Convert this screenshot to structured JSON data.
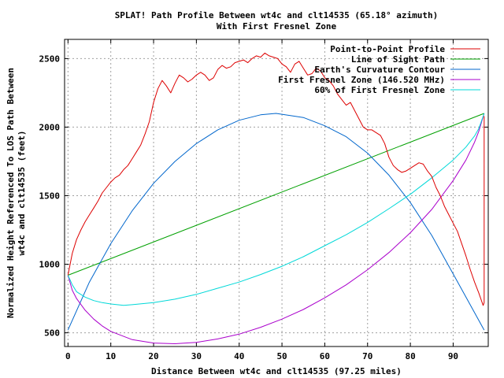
{
  "chart_data": {
    "type": "line",
    "title": "SPLAT! Path Profile Between wt4c and clt14535 (65.18° azimuth)",
    "subtitle": "With First Fresnel Zone",
    "xlabel": "Distance Between wt4c and clt14535 (97.25 miles)",
    "ylabel_line1": "Normalized Height Referenced To LOS Path Between",
    "ylabel_line2": "wt4c and clt14535 (feet)",
    "xlim": [
      -0.8,
      98.2
    ],
    "ylim": [
      400,
      2640
    ],
    "x_ticks": [
      0,
      10,
      20,
      30,
      40,
      50,
      60,
      70,
      80,
      90
    ],
    "y_ticks": [
      500,
      1000,
      1500,
      2000,
      2500
    ],
    "grid": true,
    "legend_position": "top-right",
    "series": [
      {
        "name": "Point-to-Point Profile",
        "color": "#dd0000",
        "x": [
          0,
          1,
          2,
          3,
          4,
          5,
          6,
          7,
          8,
          9,
          10,
          11,
          12,
          13,
          14,
          15,
          16,
          17,
          18,
          19,
          20,
          21,
          22,
          23,
          24,
          25,
          26,
          27,
          28,
          29,
          30,
          31,
          32,
          33,
          34,
          35,
          36,
          37,
          38,
          39,
          40,
          41,
          42,
          43,
          44,
          45,
          46,
          47,
          48,
          49,
          50,
          51,
          52,
          53,
          54,
          55,
          56,
          57,
          58,
          59,
          60,
          61,
          62,
          63,
          64,
          65,
          66,
          67,
          68,
          69,
          70,
          71,
          72,
          73,
          74,
          75,
          76,
          77,
          78,
          79,
          80,
          81,
          82,
          83,
          84,
          85,
          86,
          87,
          88,
          89,
          90,
          91,
          92,
          93,
          94,
          95,
          96,
          97,
          97.25,
          97.25
        ],
        "y": [
          920,
          1080,
          1180,
          1250,
          1310,
          1360,
          1410,
          1460,
          1520,
          1560,
          1600,
          1630,
          1650,
          1690,
          1720,
          1770,
          1820,
          1870,
          1950,
          2040,
          2180,
          2280,
          2340,
          2300,
          2250,
          2320,
          2380,
          2360,
          2330,
          2350,
          2380,
          2400,
          2380,
          2340,
          2360,
          2420,
          2450,
          2430,
          2440,
          2470,
          2480,
          2490,
          2470,
          2500,
          2520,
          2510,
          2540,
          2520,
          2510,
          2500,
          2460,
          2440,
          2400,
          2460,
          2480,
          2430,
          2380,
          2390,
          2430,
          2410,
          2360,
          2340,
          2300,
          2240,
          2200,
          2160,
          2180,
          2120,
          2060,
          2000,
          1980,
          1980,
          1960,
          1940,
          1880,
          1780,
          1720,
          1690,
          1670,
          1680,
          1700,
          1720,
          1740,
          1730,
          1680,
          1640,
          1560,
          1500,
          1420,
          1360,
          1300,
          1240,
          1150,
          1060,
          960,
          870,
          790,
          700,
          720,
          2080
        ]
      },
      {
        "name": "Line of Sight Path",
        "color": "#00a000",
        "x": [
          0,
          97.25
        ],
        "y": [
          920,
          2100
        ]
      },
      {
        "name": "Earth's Curvature Contour",
        "color": "#0066cc",
        "x": [
          0,
          5,
          10,
          15,
          20,
          25,
          30,
          35,
          40,
          45,
          48.6,
          55,
          60,
          65,
          70,
          75,
          80,
          85,
          90,
          97.25
        ],
        "y": [
          520,
          870,
          1150,
          1390,
          1590,
          1750,
          1880,
          1980,
          2050,
          2090,
          2100,
          2070,
          2010,
          1930,
          1810,
          1650,
          1450,
          1210,
          930,
          520
        ]
      },
      {
        "name": "First Fresnel Zone (146.520 MHz)",
        "color": "#aa00cc",
        "x": [
          0,
          1,
          2,
          4,
          6,
          8,
          10,
          15,
          20,
          25,
          30,
          35,
          40,
          45,
          50,
          55,
          60,
          65,
          70,
          75,
          80,
          85,
          90,
          93,
          95,
          96,
          97.25
        ],
        "y": [
          920,
          810,
          750,
          665,
          600,
          550,
          510,
          450,
          425,
          420,
          430,
          455,
          490,
          540,
          600,
          670,
          755,
          850,
          960,
          1085,
          1230,
          1400,
          1610,
          1760,
          1890,
          1970,
          2100
        ]
      },
      {
        "name": "60% of First Fresnel Zone",
        "color": "#00d8d8",
        "x": [
          0,
          1,
          2,
          4,
          6,
          8,
          10,
          13,
          15,
          20,
          25,
          30,
          35,
          40,
          45,
          50,
          55,
          60,
          65,
          70,
          75,
          80,
          85,
          90,
          93,
          95,
          96,
          97.25
        ],
        "y": [
          920,
          850,
          800,
          760,
          735,
          720,
          710,
          700,
          705,
          720,
          745,
          780,
          825,
          870,
          925,
          985,
          1055,
          1135,
          1215,
          1305,
          1405,
          1510,
          1630,
          1760,
          1855,
          1935,
          1990,
          2100
        ]
      }
    ]
  }
}
